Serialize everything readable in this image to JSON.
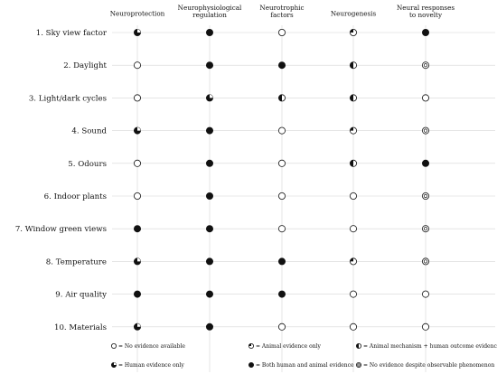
{
  "columns": [
    {
      "lines": [
        "Neuroprotection"
      ]
    },
    {
      "lines": [
        "Neurophysiological",
        "regulation"
      ]
    },
    {
      "lines": [
        "Neurotrophic",
        "factors"
      ]
    },
    {
      "lines": [
        "Neurogenesis"
      ]
    },
    {
      "lines": [
        "Neural responses",
        "to novelty"
      ]
    }
  ],
  "rows": [
    {
      "label": "1. Sky view factor",
      "cells": [
        "human",
        "both",
        "none",
        "animal",
        "both"
      ]
    },
    {
      "label": "2. Daylight",
      "cells": [
        "none",
        "both",
        "both",
        "mechanism",
        "no-evidence"
      ]
    },
    {
      "label": "3. Light/dark cycles",
      "cells": [
        "none",
        "human",
        "mechanism",
        "mechanism",
        "none"
      ]
    },
    {
      "label": "4. Sound",
      "cells": [
        "human",
        "both",
        "none",
        "animal",
        "no-evidence"
      ]
    },
    {
      "label": "5. Odours",
      "cells": [
        "none",
        "both",
        "none",
        "mechanism",
        "both"
      ]
    },
    {
      "label": "6. Indoor plants",
      "cells": [
        "none",
        "both",
        "none",
        "none",
        "no-evidence"
      ]
    },
    {
      "label": "7. Window green views",
      "cells": [
        "both",
        "both",
        "none",
        "none",
        "no-evidence"
      ]
    },
    {
      "label": "8. Temperature",
      "cells": [
        "human",
        "both",
        "both",
        "animal",
        "no-evidence"
      ]
    },
    {
      "label": "9. Air quality",
      "cells": [
        "both",
        "both",
        "both",
        "none",
        "none"
      ]
    },
    {
      "label": "10. Materials",
      "cells": [
        "human",
        "both",
        "none",
        "none",
        "none"
      ]
    }
  ],
  "legend": [
    {
      "symbol": "none",
      "text": "= No evidence available"
    },
    {
      "symbol": "animal",
      "text": "= Animal evidence only"
    },
    {
      "symbol": "mechanism",
      "text": "= Animal mechanism + human outcome evidence"
    },
    {
      "symbol": "human",
      "text": "= Human evidence only"
    },
    {
      "symbol": "both",
      "text": "= Both human and animal evidence"
    },
    {
      "symbol": "no-evidence",
      "text": "= No evidence despite observable phenomenon"
    }
  ],
  "colors": {
    "grid": "#d6d6d6",
    "ink": "#111111",
    "background": "#ffffff"
  }
}
